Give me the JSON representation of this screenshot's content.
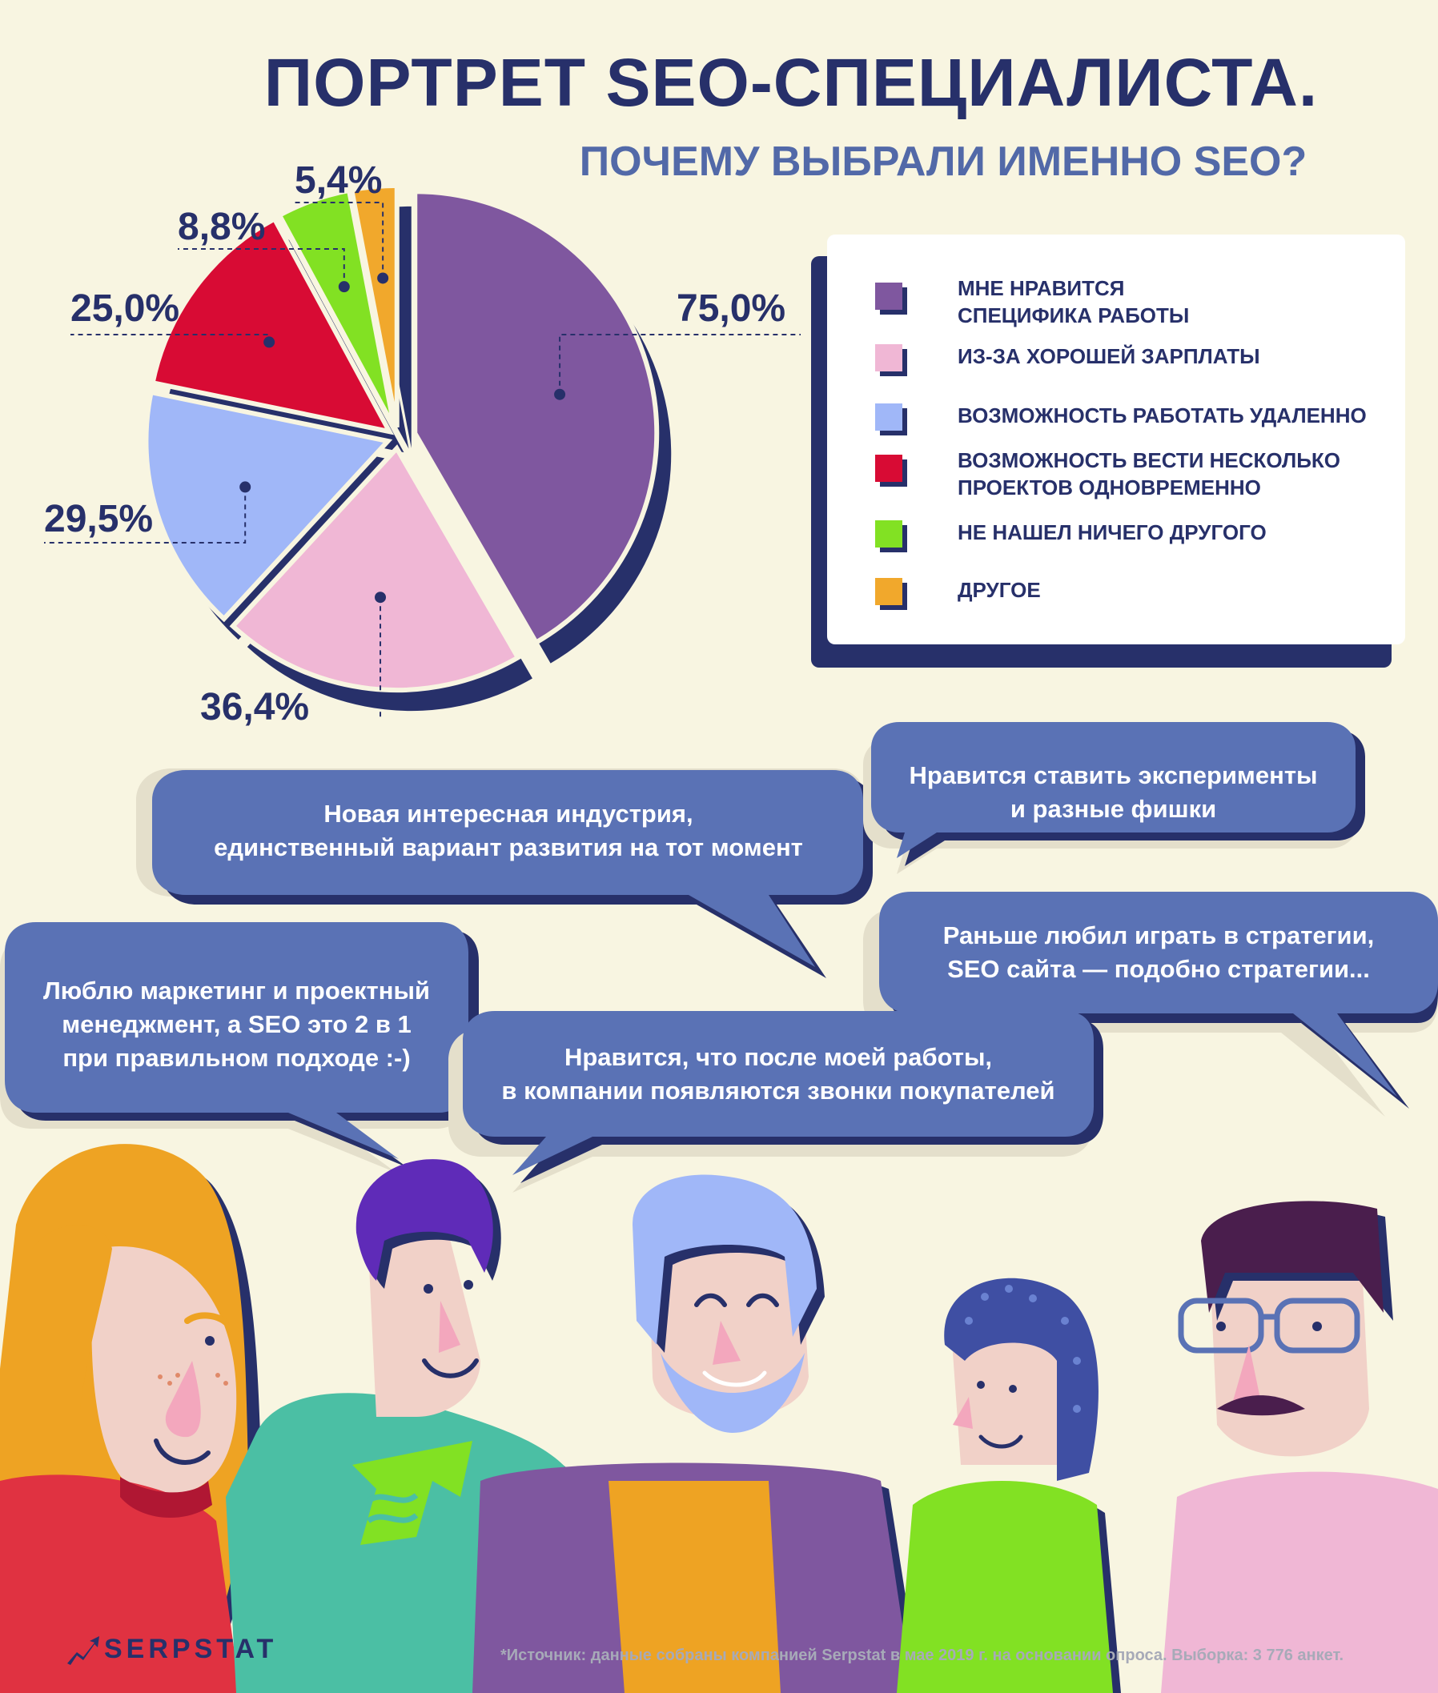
{
  "title": "ПОРТРЕТ SEO-СПЕЦИАЛИСТА.",
  "subtitle": "ПОЧЕМУ ВЫБРАЛИ ИМЕННО SEO?",
  "chart_data": {
    "type": "pie",
    "title": "ПОЧЕМУ ВЫБРАЛИ ИМЕННО SEO?",
    "categories": [
      "МНЕ НРАВИТСЯ СПЕЦИФИКА РАБОТЫ",
      "ИЗ-ЗА ХОРОШЕЙ ЗАРПЛАТЫ",
      "ВОЗМОЖНОСТЬ РАБОТАТЬ УДАЛЕННО",
      "ВОЗМОЖНОСТЬ ВЕСТИ НЕСКОЛЬКО ПРОЕКТОВ ОДНОВРЕМЕННО",
      "НЕ НАШЕЛ НИЧЕГО ДРУГОГО",
      "ДРУГОЕ"
    ],
    "values": [
      75.0,
      36.4,
      29.5,
      25.0,
      8.8,
      5.4
    ],
    "value_labels": [
      "75,0%",
      "36,4%",
      "29,5%",
      "25,0%",
      "8,8%",
      "5,4%"
    ],
    "colors": [
      "#7f579f",
      "#f0b7d5",
      "#a0b7f8",
      "#d80b34",
      "#82e123",
      "#f1a82c"
    ],
    "legend_position": "right"
  },
  "legend": [
    {
      "line1": "МНЕ НРАВИТСЯ",
      "line2": "СПЕЦИФИКА РАБОТЫ",
      "color": "#7f579f"
    },
    {
      "line1": "ИЗ-ЗА ХОРОШЕЙ ЗАРПЛАТЫ",
      "line2": "",
      "color": "#f0b7d5"
    },
    {
      "line1": "ВОЗМОЖНОСТЬ РАБОТАТЬ УДАЛЕННО",
      "line2": "",
      "color": "#a0b7f8"
    },
    {
      "line1": "ВОЗМОЖНОСТЬ ВЕСТИ НЕСКОЛЬКО",
      "line2": "ПРОЕКТОВ ОДНОВРЕМЕННО",
      "color": "#d80b34"
    },
    {
      "line1": "НЕ НАШЕЛ НИЧЕГО ДРУГОГО",
      "line2": "",
      "color": "#82e123"
    },
    {
      "line1": "ДРУГОЕ",
      "line2": "",
      "color": "#f1a82c"
    }
  ],
  "quotes": {
    "industry": {
      "line1": "Новая интересная индустрия,",
      "line2": "единственный вариант развития на тот момент",
      "line3": ""
    },
    "experiments": {
      "line1": "Нравится ставить эксперименты",
      "line2": "и разные фишки",
      "line3": ""
    },
    "strategy": {
      "line1": "Раньше любил играть в стратегии,",
      "line2": "SEO сайта — подобно стратегии...",
      "line3": ""
    },
    "marketing": {
      "line1": "Люблю маркетинг и проектный",
      "line2": "менеджмент, а SEO это 2 в 1",
      "line3": "при правильном подходе :-)"
    },
    "calls": {
      "line1": "Нравится, что после моей работы,",
      "line2": "в компании появляются звонки покупателей",
      "line3": ""
    }
  },
  "brand": "SERPSTAT",
  "source": "*Источник: данные собраны компанией Serpstat в мае 2019 г. на основании опроса. Выборка: 3 776 анкет.",
  "palette": {
    "navy": "#27306a",
    "bubble": "#5a72b5",
    "background": "#f8f5e1"
  }
}
